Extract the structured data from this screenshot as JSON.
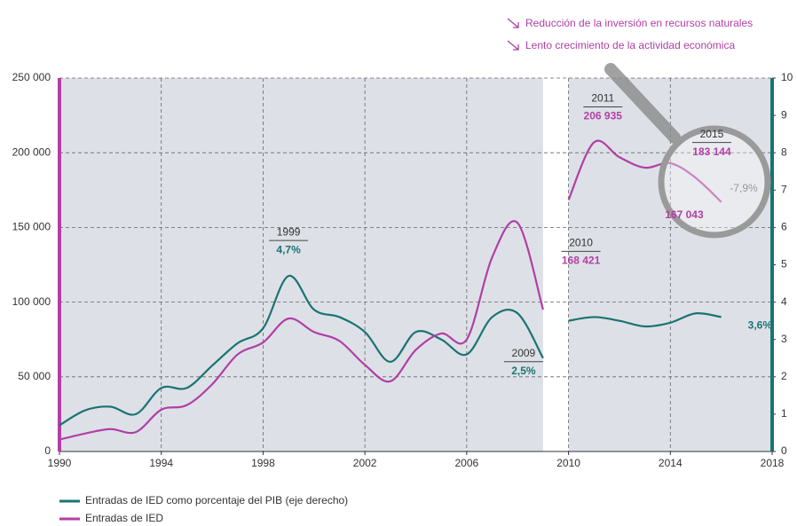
{
  "chart_data": {
    "type": "line",
    "notes": [
      "Reducción de la inversión en recursos naturales",
      "Lento crecimiento de la actividad económica"
    ],
    "annotation": "-7,9%",
    "x": [
      1990,
      1991,
      1992,
      1993,
      1994,
      1995,
      1996,
      1997,
      1998,
      1999,
      2000,
      2001,
      2002,
      2003,
      2004,
      2005,
      2006,
      2007,
      2008,
      2009,
      2010,
      2011,
      2012,
      2013,
      2014,
      2015,
      2016
    ],
    "background_break": [
      2009,
      2010
    ],
    "series": [
      {
        "name": "Entradas de IED como porcentaje del PIB (eje derecho)",
        "color": "#1b7373",
        "axis": "y2",
        "values": [
          0.7,
          1.1,
          1.2,
          1.0,
          1.7,
          1.7,
          2.3,
          2.9,
          3.3,
          4.7,
          3.8,
          3.6,
          3.2,
          2.4,
          3.2,
          3.0,
          2.6,
          3.6,
          3.7,
          2.5,
          3.5,
          3.6,
          3.5,
          3.35,
          3.45,
          3.7,
          3.6
        ],
        "value_labels": [
          null,
          null,
          null,
          null,
          null,
          null,
          null,
          null,
          null,
          "4,7%",
          null,
          null,
          null,
          null,
          null,
          null,
          null,
          null,
          null,
          "2,5%",
          null,
          null,
          null,
          null,
          null,
          null,
          "3,6%"
        ]
      },
      {
        "name": "Entradas de IED",
        "color": "#b23fa5",
        "values": [
          8000,
          12000,
          15000,
          13000,
          28000,
          31000,
          45000,
          65000,
          73000,
          89000,
          80000,
          74000,
          58000,
          47000,
          68000,
          79000,
          75000,
          130000,
          153000,
          95000,
          168421,
          206935,
          197000,
          190000,
          193000,
          183144,
          167043
        ],
        "value_labels": [
          null,
          null,
          null,
          null,
          null,
          null,
          null,
          null,
          null,
          null,
          null,
          null,
          null,
          null,
          null,
          null,
          null,
          null,
          null,
          null,
          "168 421",
          "206 935",
          null,
          null,
          null,
          "183 144",
          "167 043"
        ]
      }
    ],
    "xlim": [
      1990,
      2018
    ],
    "xticks": [
      1990,
      1994,
      1998,
      2002,
      2006,
      2010,
      2014,
      2018
    ],
    "ylim": [
      0,
      250000
    ],
    "yticks": [
      {
        "value": 0,
        "label": "0"
      },
      {
        "value": 50000,
        "label": "50 000"
      },
      {
        "value": 100000,
        "label": "100 000"
      },
      {
        "value": 150000,
        "label": "150 000"
      },
      {
        "value": 200000,
        "label": "200 000"
      },
      {
        "value": 250000,
        "label": "250 000"
      }
    ],
    "y2lim": [
      0,
      10
    ],
    "y2ticks": [
      0,
      1,
      2,
      3,
      4,
      5,
      6,
      7,
      8,
      9,
      10
    ],
    "grid": true
  }
}
